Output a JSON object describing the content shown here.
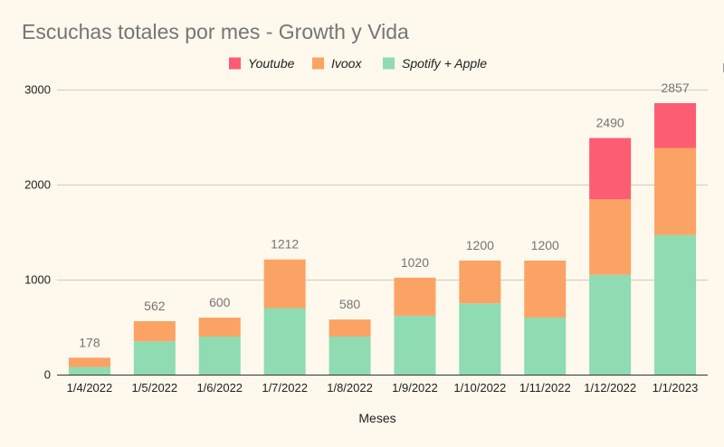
{
  "chart_data": {
    "type": "bar",
    "stacked": true,
    "title": "Escuchas totales por mes - Growth y Vida",
    "xlabel": "Meses",
    "ylabel": "",
    "ylim": [
      0,
      3000
    ],
    "yticks": [
      0,
      1000,
      2000,
      3000
    ],
    "grid": true,
    "legend_position": "top",
    "categories": [
      "1/4/2022",
      "1/5/2022",
      "1/6/2022",
      "1/7/2022",
      "1/8/2022",
      "1/9/2022",
      "1/10/2022",
      "1/11/2022",
      "1/12/2022",
      "1/1/2023"
    ],
    "series": [
      {
        "name": "Spotify + Apple",
        "color": "#8fdbb2",
        "values": [
          80,
          350,
          400,
          700,
          400,
          620,
          750,
          600,
          1050,
          1470
        ]
      },
      {
        "name": "Ivoox",
        "color": "#fba365",
        "values": [
          98,
          212,
          200,
          512,
          180,
          400,
          450,
          600,
          795,
          915
        ]
      },
      {
        "name": "Youtube",
        "color": "#fd5d72",
        "values": [
          0,
          0,
          0,
          0,
          0,
          0,
          0,
          0,
          645,
          472
        ]
      }
    ],
    "legend_order": [
      "Youtube",
      "Ivoox",
      "Spotify + Apple"
    ],
    "totals": [
      178,
      562,
      600,
      1212,
      580,
      1020,
      1200,
      1200,
      2490,
      2857
    ]
  }
}
